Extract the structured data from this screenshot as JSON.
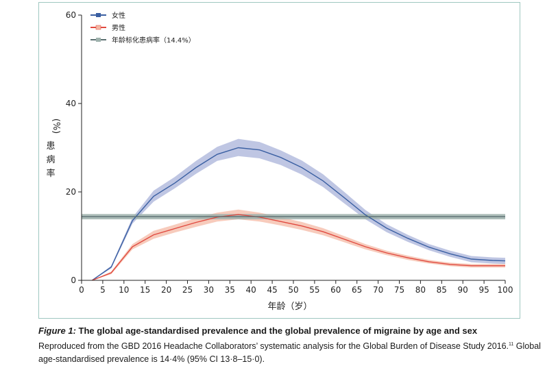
{
  "chart_data": {
    "type": "line",
    "xlabel": "年龄（岁）",
    "ylabel_unit": "(%)",
    "ylabel": [
      "患",
      "病",
      "率"
    ],
    "xlim": [
      0,
      100
    ],
    "ylim": [
      0,
      60
    ],
    "xticks": [
      0,
      5,
      10,
      15,
      20,
      25,
      30,
      35,
      40,
      45,
      50,
      55,
      60,
      65,
      70,
      75,
      80,
      85,
      90,
      95,
      100
    ],
    "yticks": [
      0,
      20,
      40,
      60
    ],
    "x": [
      2.5,
      7,
      12,
      17,
      22,
      27,
      32,
      37,
      42,
      47,
      52,
      57,
      62,
      67,
      72,
      77,
      82,
      87,
      92,
      97,
      100
    ],
    "series": [
      {
        "name": "女性",
        "color": "#3a5fa2",
        "band_color": "#a9b3d9",
        "values": [
          0,
          3,
          13.5,
          19,
          22,
          25.5,
          28.5,
          30,
          29.5,
          27.8,
          25.5,
          22.5,
          18.7,
          14.8,
          11.8,
          9.5,
          7.5,
          6,
          4.8,
          4.5,
          4.4
        ],
        "lower": [
          0,
          2.7,
          12.8,
          17.8,
          20.8,
          24.1,
          27,
          28.1,
          27.6,
          26.1,
          23.9,
          21.1,
          17.4,
          13.8,
          10.9,
          8.7,
          6.8,
          5.3,
          4.1,
          3.8,
          3.7
        ],
        "upper": [
          0,
          3.3,
          14.2,
          20.3,
          23.4,
          27,
          30.2,
          32,
          31.3,
          29.4,
          27.1,
          24,
          20,
          15.9,
          12.7,
          10.3,
          8.2,
          6.7,
          5.5,
          5.2,
          5.1
        ]
      },
      {
        "name": "男性",
        "color": "#e0493f",
        "band_color": "#f4b9a5",
        "values": [
          0,
          1.7,
          7.6,
          10.3,
          11.7,
          13.1,
          14.3,
          14.9,
          14.3,
          13.3,
          12.3,
          11,
          9.3,
          7.6,
          6.2,
          5.1,
          4.2,
          3.6,
          3.3,
          3.3,
          3.3
        ],
        "lower": [
          0,
          1.4,
          7,
          9.4,
          10.8,
          12.1,
          13.3,
          13.8,
          13.3,
          12.4,
          11.4,
          10.2,
          8.6,
          7,
          5.7,
          4.6,
          3.8,
          3.2,
          2.9,
          2.9,
          2.9
        ],
        "upper": [
          0,
          2,
          8.2,
          11.2,
          12.6,
          14.1,
          15.3,
          16,
          15.3,
          14.3,
          13.2,
          11.8,
          10,
          8.2,
          6.7,
          5.6,
          4.6,
          4,
          3.7,
          3.7,
          3.7
        ]
      },
      {
        "name": "年龄标化患病率（14.4%）",
        "color": "#5a6e70",
        "band_color": "#9fb2ad",
        "constant": 14.4,
        "lower": 13.8,
        "upper": 15.0
      }
    ],
    "legend_position": "top-left",
    "grid": false
  },
  "caption": {
    "figure_label": "Figure 1:",
    "title": " The global age-standardised prevalence and the global prevalence of migraine by age and sex",
    "body_part1": "Reproduced from the GBD 2016 Headache Collaborators’ systematic analysis for the Global Burden of Disease Study 2016.",
    "citation": "11",
    "body_part2": " Global age-standardised prevalence is 14·4% (95% CI 13·8–15·0)."
  }
}
